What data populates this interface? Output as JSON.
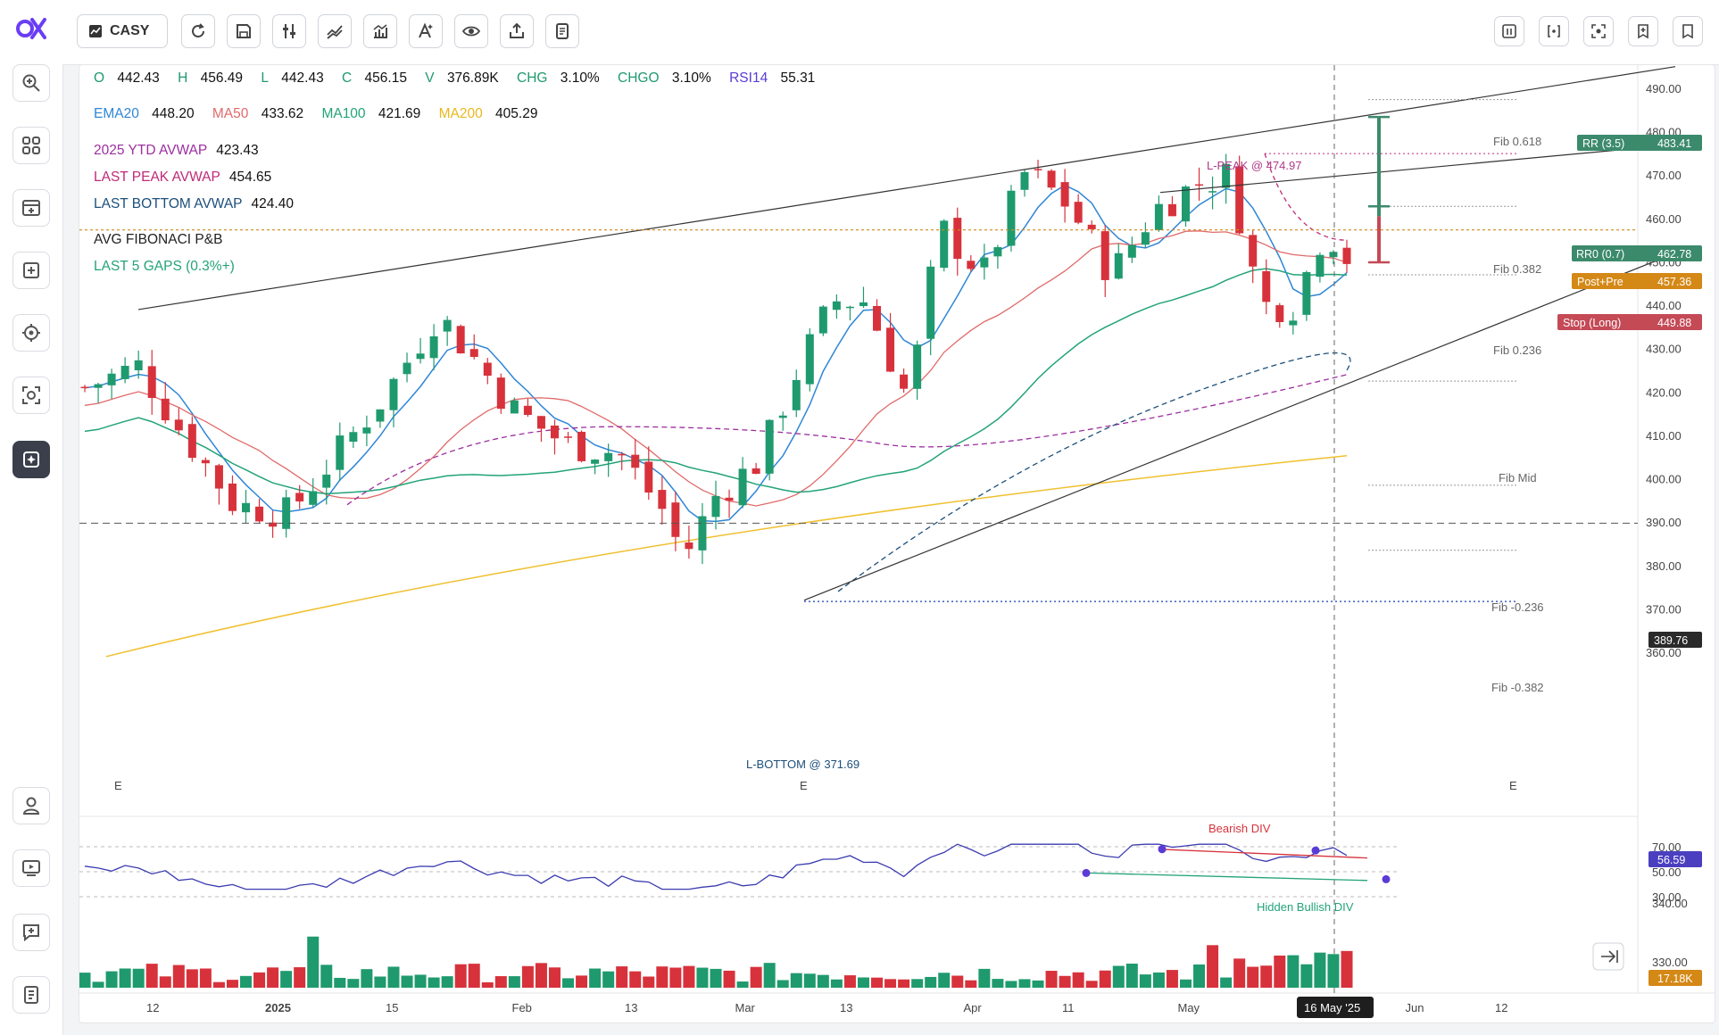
{
  "toolbar": {
    "symbol": "CASY"
  },
  "ohlc": {
    "o_label": "O",
    "o": "442.43",
    "h_label": "H",
    "h": "456.49",
    "l_label": "L",
    "l": "442.43",
    "c_label": "C",
    "c": "456.15",
    "v_label": "V",
    "v": "376.89K",
    "chg_label": "CHG",
    "chg": "3.10%",
    "chgo_label": "CHGO",
    "chgo": "3.10%",
    "rsi_label": "RSI14",
    "rsi": "55.31"
  },
  "mas": {
    "ema20_label": "EMA20",
    "ema20": "448.20",
    "ma50_label": "MA50",
    "ma50": "433.62",
    "ma100_label": "MA100",
    "ma100": "421.69",
    "ma200_label": "MA200",
    "ma200": "405.29"
  },
  "avwap": {
    "ytd_label": "2025 YTD AVWAP",
    "ytd": "423.43",
    "peak_label": "LAST PEAK AVWAP",
    "peak": "454.65",
    "bottom_label": "LAST BOTTOM AVWAP",
    "bottom": "424.40"
  },
  "studies": {
    "fib_label": "AVG FIBONACI P&B",
    "gaps_label": "LAST 5 GAPS (0.3%+)"
  },
  "annotations": {
    "lpeak": "L-PEAK @ 474.97",
    "lbottom": "L-BOTTOM @ 371.69",
    "fib_0618": "Fib 0.618",
    "fib_0382": "Fib 0.382",
    "fib_0236": "Fib 0.236",
    "fib_mid": "Fib Mid",
    "fib_m0236": "Fib -0.236",
    "fib_m0382": "Fib -0.382",
    "bearish_div": "Bearish DIV",
    "hidden_bullish_div": "Hidden Bullish DIV",
    "e1": "E",
    "e2": "E",
    "e3": "E"
  },
  "price_tags": {
    "rr_label": "RR (3.5)",
    "rr": "483.41",
    "rr0_label": "RR0 (0.7)",
    "rr0": "462.78",
    "postpre_label": "Post+Pre",
    "postpre": "457.36",
    "stop_label": "Stop (Long)",
    "stop": "449.88",
    "hline": "389.76",
    "rsi_current": "56.59",
    "volume_current": "17.18K"
  },
  "price_axis": [
    "490.00",
    "480.00",
    "470.00",
    "460.00",
    "450.00",
    "440.00",
    "430.00",
    "420.00",
    "410.00",
    "400.00",
    "390.00",
    "380.00",
    "370.00",
    "360.00"
  ],
  "rsi_axis": [
    "70.00",
    "50.00",
    "30.00"
  ],
  "rsi_axis_overlap": "340.00",
  "volume_axis": "330.00",
  "time_axis": [
    "12",
    "2025",
    "15",
    "Feb",
    "13",
    "Mar",
    "13",
    "Apr",
    "11",
    "May",
    "Jun",
    "12"
  ],
  "crosshair_date": "16 May '25",
  "colors": {
    "up": "#1f9a6e",
    "down": "#d7323b",
    "ema20": "#2f86d6",
    "ma50": "#e06a6a",
    "ma100": "#23a37a",
    "ma200": "#f0c030",
    "ytd_avwap": "#9c2fa0",
    "peak_avwap": "#c02a77",
    "bottom_avwap": "#1c4f7a",
    "brand": "#6a3df5"
  }
}
